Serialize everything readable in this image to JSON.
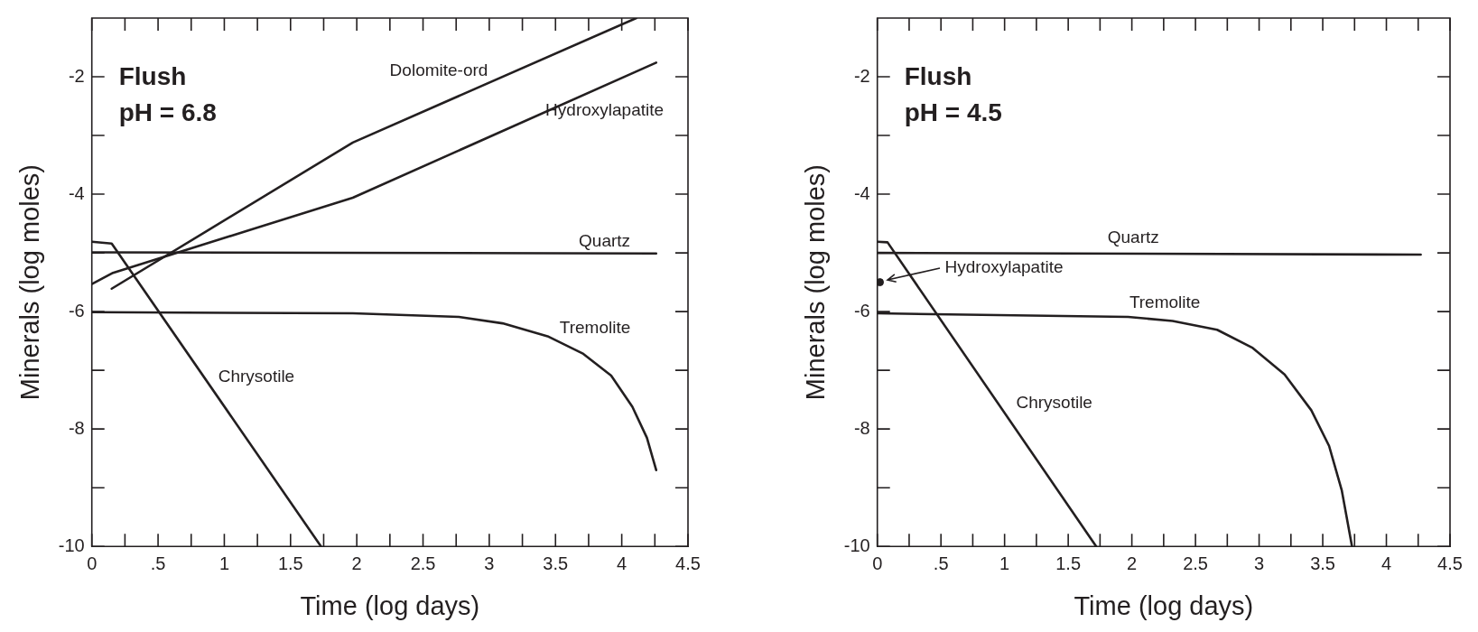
{
  "chart_data": [
    {
      "type": "line",
      "title": "Flush",
      "subtitle": "pH = 6.8",
      "xlabel": "Time (log days)",
      "ylabel": "Minerals (log moles)",
      "xlim": [
        0,
        4.5
      ],
      "ylim": [
        -10,
        -1
      ],
      "xticks": [
        0,
        {
          "value": 0.25,
          "label": null
        },
        {
          "value": 0.5,
          "label": ".5"
        },
        {
          "value": 0.75,
          "label": null
        },
        1,
        {
          "value": 1.25,
          "label": null
        },
        1.5,
        {
          "value": 1.75,
          "label": null
        },
        2,
        {
          "value": 2.25,
          "label": null
        },
        2.5,
        {
          "value": 2.75,
          "label": null
        },
        3,
        {
          "value": 3.25,
          "label": null
        },
        3.5,
        {
          "value": 3.75,
          "label": null
        },
        4,
        {
          "value": 4.25,
          "label": null
        },
        4.5
      ],
      "yticks": [
        -10,
        {
          "value": -9,
          "label": null
        },
        -8,
        {
          "value": -7,
          "label": null
        },
        -6,
        {
          "value": -5,
          "label": null
        },
        -4,
        {
          "value": -3,
          "label": null
        },
        -2
      ],
      "grid": false,
      "legend": false,
      "series": [
        {
          "name": "Dolomite-ord",
          "color": "#231f20",
          "x": [
            0.15,
            1.97,
            4.11
          ],
          "values": [
            -5.61,
            -3.12,
            -1.0
          ]
        },
        {
          "name": "Hydroxylapatite",
          "color": "#231f20",
          "x": [
            0,
            0.16,
            1.97,
            4.26
          ],
          "values": [
            -5.53,
            -5.34,
            -4.06,
            -1.76
          ]
        },
        {
          "name": "Quartz",
          "color": "#231f20",
          "x": [
            0,
            4.26
          ],
          "values": [
            -4.99,
            -5.01
          ]
        },
        {
          "name": "Chrysotile",
          "color": "#231f20",
          "x": [
            0,
            0.15,
            1.73
          ],
          "values": [
            -4.81,
            -4.84,
            -10.0
          ]
        },
        {
          "name": "Tremolite",
          "color": "#231f20",
          "x": [
            0,
            1.97,
            2.77,
            3.1,
            3.44,
            3.71,
            3.92,
            4.08,
            4.19,
            4.26
          ],
          "values": [
            -6.01,
            -6.03,
            -6.09,
            -6.2,
            -6.42,
            -6.72,
            -7.09,
            -7.62,
            -8.15,
            -8.7
          ]
        }
      ]
    },
    {
      "type": "line",
      "title": "Flush",
      "subtitle": "pH = 4.5",
      "xlabel": "Time (log days)",
      "ylabel": "Minerals (log moles)",
      "xlim": [
        0,
        4.5
      ],
      "ylim": [
        -10,
        -1
      ],
      "xticks": [
        0,
        {
          "value": 0.25,
          "label": null
        },
        {
          "value": 0.5,
          "label": ".5"
        },
        {
          "value": 0.75,
          "label": null
        },
        1,
        {
          "value": 1.25,
          "label": null
        },
        1.5,
        {
          "value": 1.75,
          "label": null
        },
        2,
        {
          "value": 2.25,
          "label": null
        },
        2.5,
        {
          "value": 2.75,
          "label": null
        },
        3,
        {
          "value": 3.25,
          "label": null
        },
        3.5,
        {
          "value": 3.75,
          "label": null
        },
        4,
        {
          "value": 4.25,
          "label": null
        },
        4.5
      ],
      "yticks": [
        -10,
        {
          "value": -9,
          "label": null
        },
        -8,
        {
          "value": -7,
          "label": null
        },
        -6,
        {
          "value": -5,
          "label": null
        },
        -4,
        {
          "value": -3,
          "label": null
        },
        -2
      ],
      "grid": false,
      "legend": false,
      "series": [
        {
          "name": "Quartz",
          "color": "#231f20",
          "x": [
            0,
            4.27
          ],
          "values": [
            -5.0,
            -5.03
          ]
        },
        {
          "name": "Chrysotile",
          "color": "#231f20",
          "x": [
            0,
            0.08,
            1.72
          ],
          "values": [
            -4.81,
            -4.82,
            -10.0
          ]
        },
        {
          "name": "Tremolite",
          "color": "#231f20",
          "x": [
            0,
            1.97,
            2.32,
            2.67,
            2.95,
            3.2,
            3.41,
            3.55,
            3.65,
            3.73
          ],
          "values": [
            -6.03,
            -6.09,
            -6.16,
            -6.31,
            -6.62,
            -7.07,
            -7.68,
            -8.29,
            -9.05,
            -10.0
          ]
        },
        {
          "type": "scatter",
          "color": "#231f20",
          "x": [
            0.02
          ],
          "values": [
            -5.5
          ]
        }
      ],
      "annotations": [
        {
          "text": "Hydroxylapatite",
          "x": 0.02,
          "y": -5.5
        }
      ]
    }
  ]
}
